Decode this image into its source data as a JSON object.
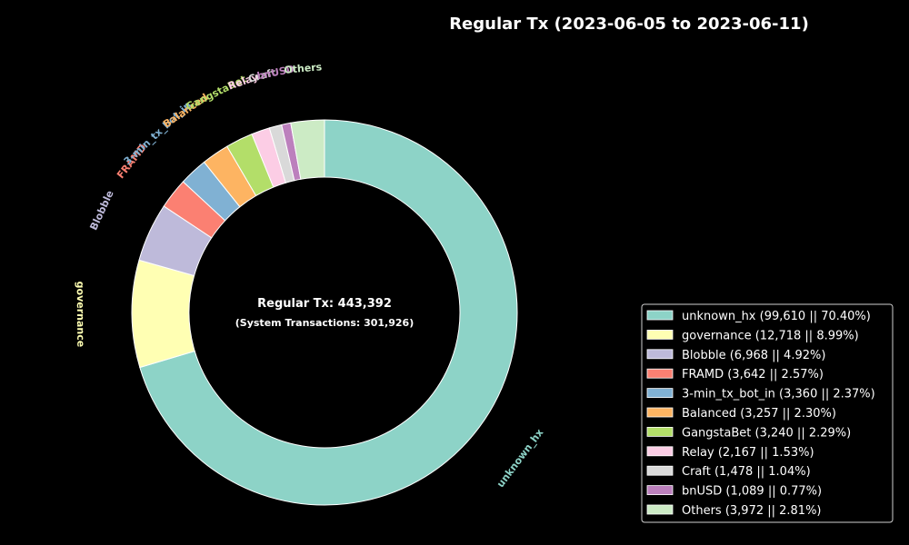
{
  "chart_data": {
    "type": "pie",
    "title": "Regular Tx (2023-06-05 to 2023-06-11)",
    "center_text": "Regular Tx: 443,392",
    "center_subtext": "(System Transactions: 301,926)",
    "legend_position": "lower-right",
    "background": "#000000",
    "slices": [
      {
        "label": "unknown_hx",
        "value": 99610,
        "percent": 70.4,
        "legend": "unknown_hx (99,610 || 70.40%)",
        "color": "#8dd3c7"
      },
      {
        "label": "governance",
        "value": 12718,
        "percent": 8.99,
        "legend": "governance (12,718 || 8.99%)",
        "color": "#ffffb3"
      },
      {
        "label": "Blobble",
        "value": 6968,
        "percent": 4.92,
        "legend": "Blobble (6,968 || 4.92%)",
        "color": "#bebada"
      },
      {
        "label": "FRAMD",
        "value": 3642,
        "percent": 2.57,
        "legend": "FRAMD (3,642 || 2.57%)",
        "color": "#fb8072"
      },
      {
        "label": "3-min_tx_bot_in",
        "value": 3360,
        "percent": 2.37,
        "legend": "3-min_tx_bot_in (3,360 || 2.37%)",
        "color": "#80b1d3"
      },
      {
        "label": "Balanced",
        "value": 3257,
        "percent": 2.3,
        "legend": "Balanced (3,257 || 2.30%)",
        "color": "#fdb462"
      },
      {
        "label": "GangstaBet",
        "value": 3240,
        "percent": 2.29,
        "legend": "GangstaBet (3,240 || 2.29%)",
        "color": "#b3de69"
      },
      {
        "label": "Relay",
        "value": 2167,
        "percent": 1.53,
        "legend": "Relay (2,167 || 1.53%)",
        "color": "#fccde5"
      },
      {
        "label": "Craft",
        "value": 1478,
        "percent": 1.04,
        "legend": "Craft (1,478 || 1.04%)",
        "color": "#d9d9d9"
      },
      {
        "label": "bnUSD",
        "value": 1089,
        "percent": 0.77,
        "legend": "bnUSD (1,089 || 0.77%)",
        "color": "#bc80bd"
      },
      {
        "label": "Others",
        "value": 3972,
        "percent": 2.81,
        "legend": "Others (3,972 || 2.81%)",
        "color": "#ccebc5"
      }
    ]
  }
}
